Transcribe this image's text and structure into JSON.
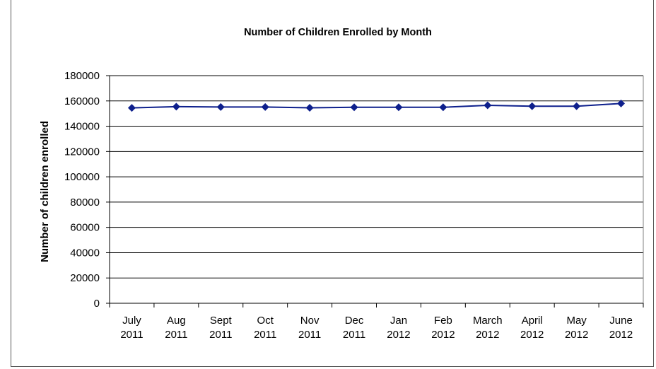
{
  "chart_data": {
    "type": "line",
    "title": "Number of Children Enrolled by Month",
    "xlabel": "",
    "ylabel": "Number of children enrolled",
    "ylim": [
      0,
      180000
    ],
    "yticks": [
      0,
      20000,
      40000,
      60000,
      80000,
      100000,
      120000,
      140000,
      160000,
      180000
    ],
    "categories": [
      [
        "July",
        "2011"
      ],
      [
        "Aug",
        "2011"
      ],
      [
        "Sept",
        "2011"
      ],
      [
        "Oct",
        "2011"
      ],
      [
        "Nov",
        "2011"
      ],
      [
        "Dec",
        "2011"
      ],
      [
        "Jan",
        "2012"
      ],
      [
        "Feb",
        "2012"
      ],
      [
        "March",
        "2012"
      ],
      [
        "April",
        "2012"
      ],
      [
        "May",
        "2012"
      ],
      [
        "June",
        "2012"
      ]
    ],
    "series": [
      {
        "values": [
          154500,
          155500,
          155200,
          155200,
          154600,
          155000,
          155000,
          155000,
          156500,
          155800,
          155800,
          158000
        ],
        "color": "#0d1f8c",
        "marker": "diamond"
      }
    ],
    "grid": true,
    "legend": "none"
  }
}
